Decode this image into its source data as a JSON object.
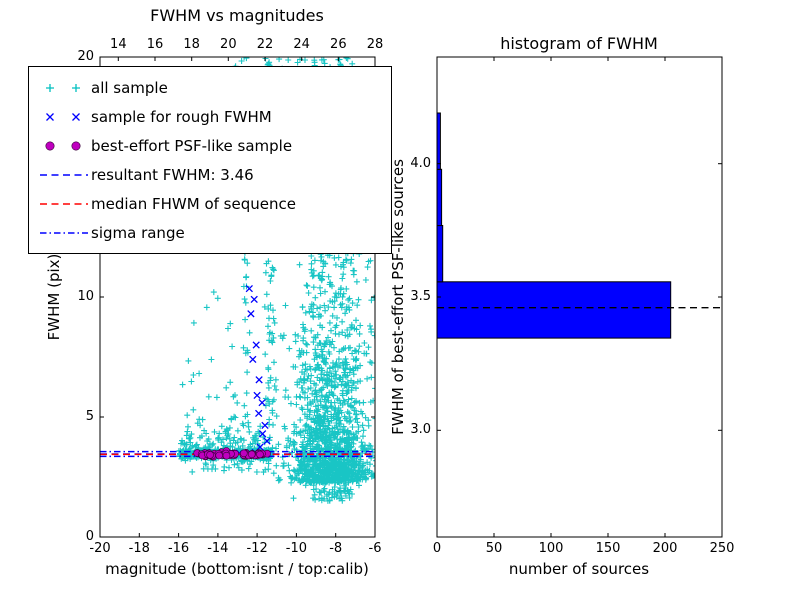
{
  "figure_background": "#ffffff",
  "colors": {
    "all_sample": "#00bfbf",
    "rough_sample": "#0000ff",
    "psf_sample": "#bf00bf",
    "resultant_line": "#0000ff",
    "median_line": "#ff0000",
    "sigma_line": "#0000ff",
    "hist_bar_fill": "#0000ff",
    "hist_bar_edge": "#000000",
    "hist_dashed_line": "#000000"
  },
  "legend": {
    "entries": [
      {
        "label": "all sample",
        "marker": "plus",
        "color": "#00bfbf"
      },
      {
        "label": "sample for rough FWHM",
        "marker": "x",
        "color": "#0000ff"
      },
      {
        "label": "best-effort PSF-like sample",
        "marker": "circle",
        "color": "#bf00bf"
      },
      {
        "label": "resultant FWHM: 3.46",
        "marker": "dashed-line",
        "color": "#0000ff"
      },
      {
        "label": "median FHWM of sequence",
        "marker": "dashed-line",
        "color": "#ff0000"
      },
      {
        "label": "sigma range",
        "marker": "dashdot-line",
        "color": "#0000ff"
      }
    ]
  },
  "chart_data": [
    {
      "type": "scatter",
      "title": "FWHM vs magnitudes",
      "xlabel": "magnitude (bottom:isnt / top:calib)",
      "ylabel": "FWHM (pix)",
      "xlim": [
        -20,
        -6
      ],
      "ylim": [
        0,
        20
      ],
      "top_axis_lim": [
        13,
        28
      ],
      "x_ticks": [
        -20,
        -18,
        -16,
        -14,
        -12,
        -10,
        -8,
        -6
      ],
      "x_tick_labels": [
        "-20",
        "-18",
        "-16",
        "-14",
        "-12",
        "-10",
        "-8",
        "-6"
      ],
      "top_ticks": [
        14,
        16,
        18,
        20,
        22,
        24,
        26,
        28
      ],
      "top_tick_labels": [
        "14",
        "16",
        "18",
        "20",
        "22",
        "24",
        "26",
        "28"
      ],
      "y_ticks": [
        0,
        5,
        10,
        15,
        20
      ],
      "y_tick_labels": [
        "0",
        "5",
        "10",
        "15",
        "20"
      ],
      "resultant_fwhm": 3.46,
      "hlines": [
        {
          "name": "resultant FWHM",
          "value": 3.46,
          "color": "#0000ff",
          "dash": "dashed"
        },
        {
          "name": "median FHWM of sequence",
          "value": 3.44,
          "color": "#ff0000",
          "dash": "dashed"
        },
        {
          "name": "sigma range low",
          "value": 3.36,
          "color": "#0000ff",
          "dash": "dashdot"
        },
        {
          "name": "sigma range high",
          "value": 3.56,
          "color": "#0000ff",
          "dash": "dashdot"
        }
      ],
      "series": [
        {
          "name": "all sample",
          "marker": "+",
          "color": "#00bfbf",
          "point_count": 2540,
          "distribution": [
            {
              "n": 380,
              "x": {
                "d": "u",
                "a": -16.0,
                "b": -11.2
              },
              "y": {
                "d": "n",
                "m": 3.46,
                "s": 0.1
              }
            },
            {
              "n": 90,
              "x": {
                "d": "u",
                "a": -15.9,
                "b": -11.3
              },
              "y": {
                "d": "n",
                "m": 3.75,
                "s": 0.45,
                "min": 3.1
              }
            },
            {
              "n": 1250,
              "x": {
                "d": "n",
                "m": -8.3,
                "s": 1.05,
                "min": -11.4,
                "max": -5.7
              },
              "y": {
                "d": "e",
                "base": 2.25,
                "scale": 1.9,
                "max": 20
              }
            },
            {
              "n": 420,
              "x": {
                "d": "n",
                "m": -8.1,
                "s": 1.15,
                "min": -10.9,
                "max": -5.8
              },
              "y": {
                "d": "u",
                "a": 6.0,
                "b": 20.0
              }
            },
            {
              "n": 130,
              "x": {
                "d": "u",
                "a": -13.2,
                "b": -10.4
              },
              "y": {
                "d": "u",
                "a": 13.0,
                "b": 20.0
              }
            },
            {
              "n": 60,
              "x": {
                "d": "n",
                "m": -12.55,
                "s": 0.13
              },
              "y": {
                "d": "u",
                "a": 3.8,
                "b": 20.0
              }
            },
            {
              "n": 55,
              "x": {
                "d": "n",
                "m": -11.35,
                "s": 0.13
              },
              "y": {
                "d": "u",
                "a": 3.8,
                "b": 13.0
              }
            },
            {
              "n": 55,
              "x": {
                "d": "u",
                "a": -15.8,
                "b": -13.0
              },
              "y": {
                "d": "e",
                "base": 3.6,
                "scale": 1.8,
                "max": 12.0
              }
            },
            {
              "n": 30,
              "x": {
                "d": "u",
                "a": -15.6,
                "b": -11.4
              },
              "y": {
                "d": "u",
                "a": 2.7,
                "b": 3.25
              }
            },
            {
              "n": 70,
              "x": {
                "d": "n",
                "m": -8.2,
                "s": 0.9,
                "min": -10.5,
                "max": -6.0
              },
              "y": {
                "d": "u",
                "a": 1.5,
                "b": 2.4
              }
            }
          ]
        },
        {
          "name": "sample for rough FWHM",
          "marker": "x",
          "color": "#0000ff",
          "points": [
            [
              -14.55,
              3.52
            ],
            [
              -14.1,
              3.46
            ],
            [
              -13.75,
              3.5
            ],
            [
              -13.3,
              3.42
            ],
            [
              -12.9,
              3.49
            ],
            [
              -12.5,
              3.45
            ],
            [
              -12.1,
              3.52
            ],
            [
              -11.8,
              3.47
            ],
            [
              -11.55,
              3.44
            ],
            [
              -12.4,
              10.35
            ],
            [
              -12.15,
              9.9
            ],
            [
              -12.32,
              9.3
            ],
            [
              -12.05,
              8.0
            ],
            [
              -12.22,
              7.4
            ],
            [
              -11.9,
              6.55
            ],
            [
              -12.0,
              5.9
            ],
            [
              -11.75,
              5.6
            ],
            [
              -11.92,
              5.15
            ],
            [
              -11.6,
              4.65
            ],
            [
              -11.72,
              4.3
            ],
            [
              -11.5,
              4.0
            ],
            [
              -11.85,
              3.75
            ]
          ]
        },
        {
          "name": "best-effort PSF-like sample",
          "marker": "o",
          "color": "#bf00bf",
          "distribution": [
            {
              "n": 62,
              "x": {
                "d": "u",
                "a": -15.15,
                "b": -11.45
              },
              "y": {
                "d": "n",
                "m": 3.44,
                "s": 0.045
              }
            }
          ]
        }
      ]
    },
    {
      "type": "bar",
      "orientation": "horizontal",
      "title": "histogram of FWHM",
      "xlabel": "number of sources",
      "ylabel": "FWHM of best-effort PSF-like sources",
      "xlim": [
        0,
        250
      ],
      "ylim": [
        2.6,
        4.4
      ],
      "x_ticks": [
        0,
        50,
        100,
        150,
        200,
        250
      ],
      "x_tick_labels": [
        "0",
        "50",
        "100",
        "150",
        "200",
        "250"
      ],
      "y_ticks": [
        3.0,
        3.5,
        4.0
      ],
      "y_tick_labels": [
        "3.0",
        "3.5",
        "4.0"
      ],
      "bins": [
        {
          "from": 3.346,
          "to": 3.557,
          "count": 205
        },
        {
          "from": 3.557,
          "to": 3.768,
          "count": 5
        },
        {
          "from": 3.768,
          "to": 3.979,
          "count": 4
        },
        {
          "from": 3.979,
          "to": 4.19,
          "count": 3
        }
      ],
      "bar_color": "#0000ff",
      "bar_edge_color": "#000000",
      "hline": {
        "name": "resultant FWHM",
        "value": 3.46,
        "color": "#000000",
        "dash": "dashed"
      }
    }
  ]
}
